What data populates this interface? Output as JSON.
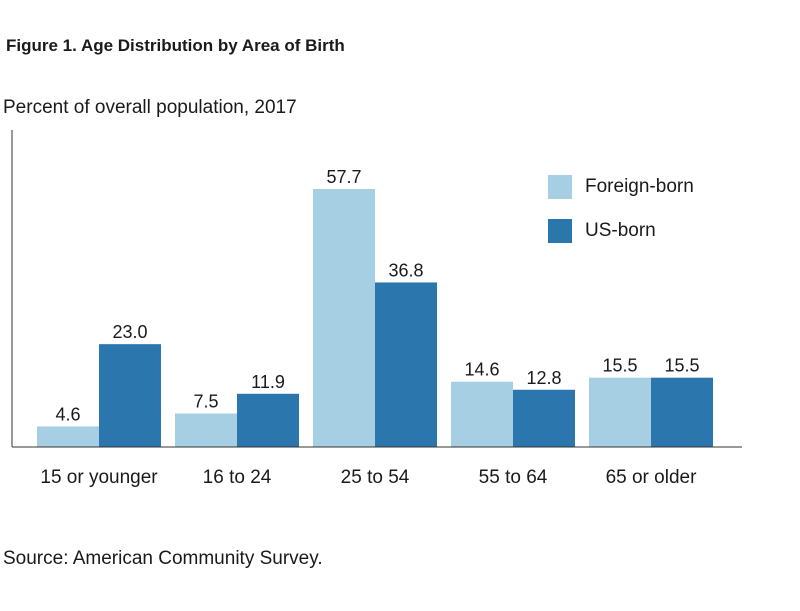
{
  "figure": {
    "title": "Figure 1. Age Distribution by Area of Birth",
    "subtitle": "Percent of overall population, 2017",
    "source": "Source: American Community Survey."
  },
  "colors": {
    "foreign_born": "#a6cfe4",
    "us_born": "#2a76ad",
    "axis": "#333333"
  },
  "chart_data": {
    "type": "bar",
    "title": "Figure 1. Age Distribution by Area of Birth",
    "ylabel": "Percent of overall population, 2017",
    "xlabel": "",
    "categories": [
      "15 or younger",
      "16 to 24",
      "25 to 54",
      "55 to 64",
      "65 or older"
    ],
    "series": [
      {
        "name": "Foreign-born",
        "values": [
          4.6,
          7.5,
          57.7,
          14.6,
          15.5
        ],
        "labels": [
          "4.6",
          "7.5",
          "57.7",
          "14.6",
          "15.5"
        ]
      },
      {
        "name": "US-born",
        "values": [
          23.0,
          11.9,
          36.8,
          12.8,
          15.5
        ],
        "labels": [
          "23.0",
          "11.9",
          "36.8",
          "12.8",
          "15.5"
        ]
      }
    ],
    "ylim": [
      0,
      57.7
    ],
    "grid": false,
    "legend": "top-right"
  }
}
